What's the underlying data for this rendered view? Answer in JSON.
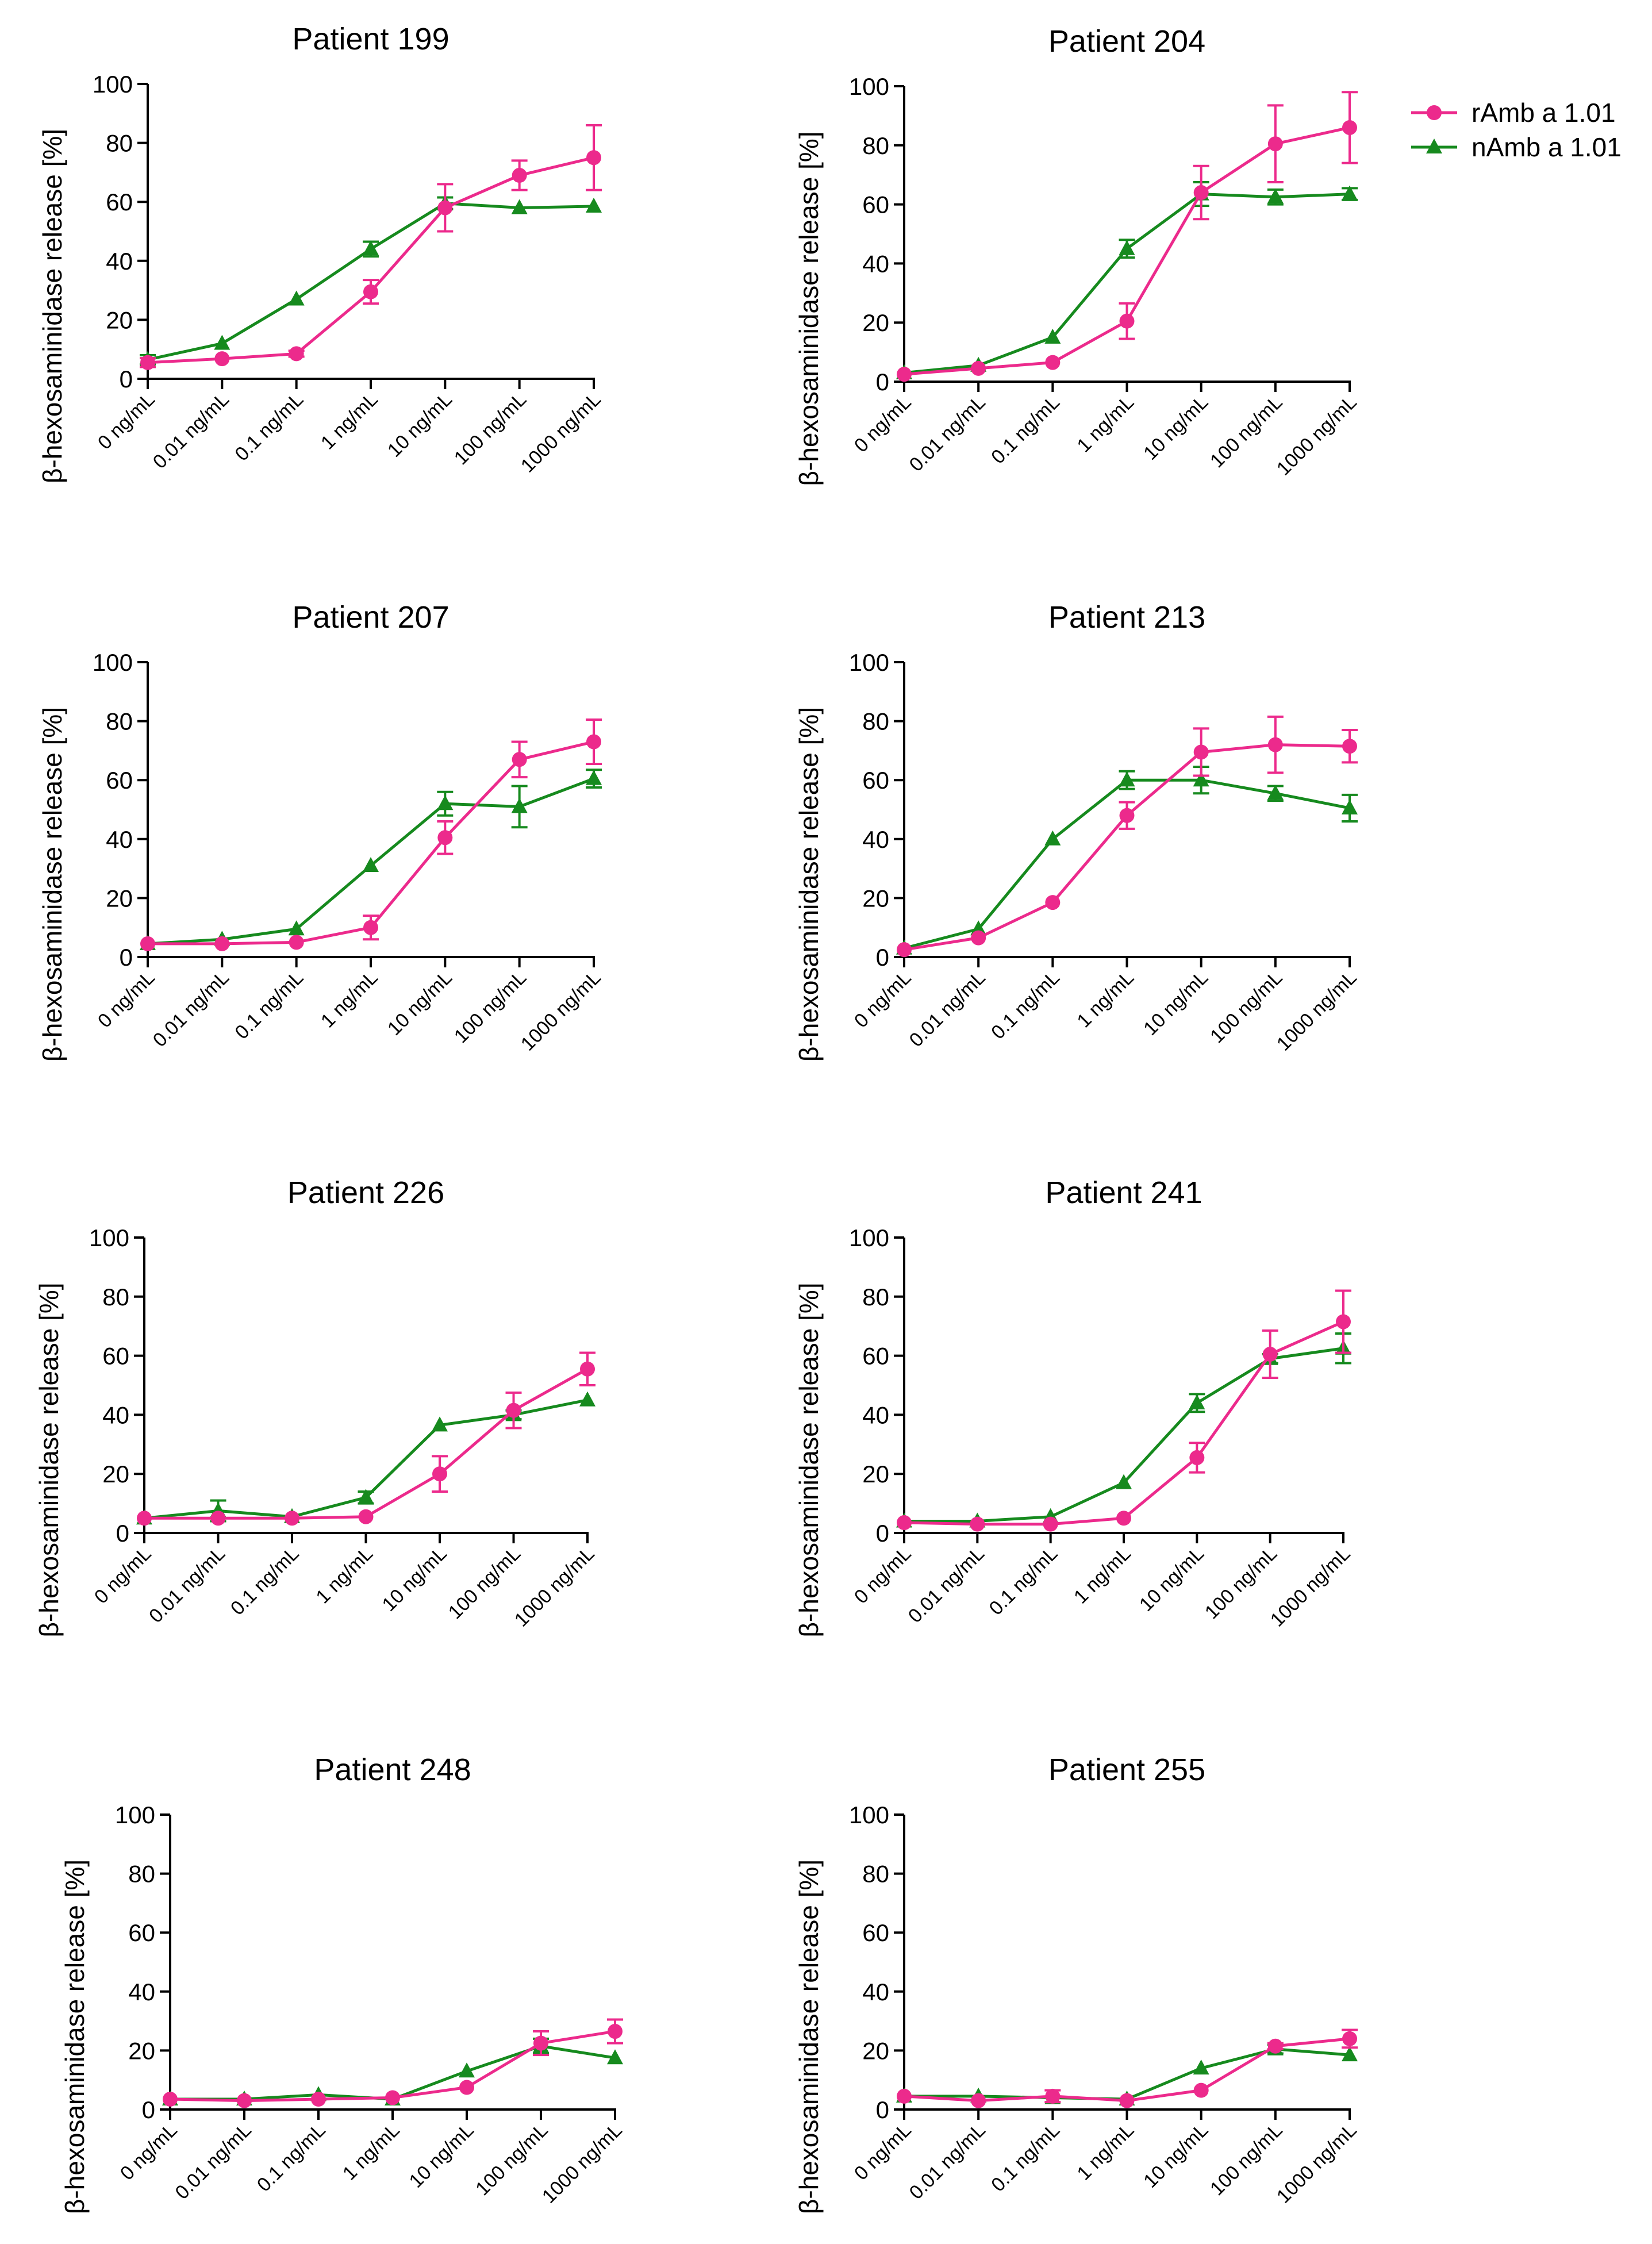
{
  "legend": {
    "placement": "top-right",
    "entries": [
      {
        "name": "rAmb a 1.01",
        "color": "#ec2a8c",
        "marker": "circle"
      },
      {
        "name": "nAmb a 1.01",
        "color": "#168a1e",
        "marker": "triangle"
      }
    ]
  },
  "chart_data": [
    {
      "type": "line",
      "title": "Patient 199",
      "ylabel": "β-hexosaminidase release [%]",
      "xlabel": "",
      "categories": [
        "0 ng/mL",
        "0.01 ng/mL",
        "0.1 ng/mL",
        "1 ng/mL",
        "10 ng/mL",
        "100 ng/mL",
        "1000 ng/mL"
      ],
      "ylim": [
        0,
        100
      ],
      "yticks": [
        "0",
        "20",
        "40",
        "60",
        "80",
        "100"
      ],
      "series": [
        {
          "name": "rAmb a 1.01",
          "color": "#ec2a8c",
          "marker": "circle",
          "values": [
            5.5,
            6.8,
            8.5,
            29.5,
            58,
            69,
            75
          ],
          "errors": [
            1.5,
            0.5,
            1,
            4,
            8,
            5,
            11
          ]
        },
        {
          "name": "nAmb a 1.01",
          "color": "#168a1e",
          "marker": "triangle",
          "values": [
            6.5,
            12,
            27,
            44,
            59.5,
            58,
            58.5
          ],
          "errors": [
            1.5,
            0.5,
            0.5,
            2.5,
            2,
            0.5,
            0.5
          ]
        }
      ]
    },
    {
      "type": "line",
      "title": "Patient 204",
      "ylabel": "β-hexosaminidase release [%]",
      "xlabel": "",
      "categories": [
        "0 ng/mL",
        "0.01 ng/mL",
        "0.1 ng/mL",
        "1 ng/mL",
        "10 ng/mL",
        "100 ng/mL",
        "1000 ng/mL"
      ],
      "ylim": [
        0,
        100
      ],
      "yticks": [
        "0",
        "20",
        "40",
        "60",
        "80",
        "100"
      ],
      "series": [
        {
          "name": "rAmb a 1.01",
          "color": "#ec2a8c",
          "marker": "circle",
          "values": [
            2.5,
            4.5,
            6.5,
            20.5,
            64,
            80.5,
            86
          ],
          "errors": [
            0.5,
            0.5,
            0.5,
            6,
            9,
            13,
            12
          ]
        },
        {
          "name": "nAmb a 1.01",
          "color": "#168a1e",
          "marker": "triangle",
          "values": [
            3,
            5.5,
            15,
            45,
            63.5,
            62.5,
            63.5
          ],
          "errors": [
            0.5,
            0.5,
            0.5,
            3,
            4,
            2.5,
            2
          ]
        }
      ]
    },
    {
      "type": "line",
      "title": "Patient 207",
      "ylabel": "β-hexosaminidase release [%]",
      "xlabel": "",
      "categories": [
        "0 ng/mL",
        "0.01 ng/mL",
        "0.1 ng/mL",
        "1 ng/mL",
        "10 ng/mL",
        "100 ng/mL",
        "1000 ng/mL"
      ],
      "ylim": [
        0,
        100
      ],
      "yticks": [
        "0",
        "20",
        "40",
        "60",
        "80",
        "100"
      ],
      "series": [
        {
          "name": "rAmb a 1.01",
          "color": "#ec2a8c",
          "marker": "circle",
          "values": [
            4.5,
            4.5,
            5,
            10,
            40.5,
            67,
            73
          ],
          "errors": [
            0.5,
            0.5,
            0.5,
            4,
            5.5,
            6,
            7.5
          ]
        },
        {
          "name": "nAmb a 1.01",
          "color": "#168a1e",
          "marker": "triangle",
          "values": [
            4.5,
            6,
            9.5,
            31,
            52,
            51,
            60.5
          ],
          "errors": [
            0.5,
            0.5,
            0.5,
            0.5,
            4,
            7,
            3
          ]
        }
      ]
    },
    {
      "type": "line",
      "title": "Patient 213",
      "ylabel": "β-hexosaminidase release [%]",
      "xlabel": "",
      "categories": [
        "0 ng/mL",
        "0.01 ng/mL",
        "0.1 ng/mL",
        "1 ng/mL",
        "10 ng/mL",
        "100 ng/mL",
        "1000 ng/mL"
      ],
      "ylim": [
        0,
        100
      ],
      "yticks": [
        "0",
        "20",
        "40",
        "60",
        "80",
        "100"
      ],
      "series": [
        {
          "name": "rAmb a 1.01",
          "color": "#ec2a8c",
          "marker": "circle",
          "values": [
            2.5,
            6.5,
            18.5,
            48,
            69.5,
            72,
            71.5
          ],
          "errors": [
            0.5,
            0.5,
            0.5,
            4.5,
            8,
            9.5,
            5.5
          ]
        },
        {
          "name": "nAmb a 1.01",
          "color": "#168a1e",
          "marker": "triangle",
          "values": [
            3,
            9.5,
            40,
            60,
            60,
            55.5,
            50.5
          ],
          "errors": [
            0.5,
            0.5,
            0.5,
            3,
            4.5,
            2.5,
            4.5
          ]
        }
      ]
    },
    {
      "type": "line",
      "title": "Patient 226",
      "ylabel": "β-hexosaminidase release [%]",
      "xlabel": "",
      "categories": [
        "0 ng/mL",
        "0.01 ng/mL",
        "0.1 ng/mL",
        "1 ng/mL",
        "10 ng/mL",
        "100 ng/mL",
        "1000 ng/mL"
      ],
      "ylim": [
        0,
        100
      ],
      "yticks": [
        "0",
        "20",
        "40",
        "60",
        "80",
        "100"
      ],
      "series": [
        {
          "name": "rAmb a 1.01",
          "color": "#ec2a8c",
          "marker": "circle",
          "values": [
            5,
            5,
            5,
            5.5,
            20,
            41.5,
            55.5
          ],
          "errors": [
            0.5,
            0.5,
            0.5,
            0.5,
            6,
            6,
            5.5
          ]
        },
        {
          "name": "nAmb a 1.01",
          "color": "#168a1e",
          "marker": "triangle",
          "values": [
            5,
            7.5,
            5.5,
            12,
            36.5,
            40,
            45
          ],
          "errors": [
            0.5,
            3.5,
            0.5,
            2,
            0.5,
            1.5,
            0.5
          ]
        }
      ]
    },
    {
      "type": "line",
      "title": "Patient 241",
      "ylabel": "β-hexosaminidase release [%]",
      "xlabel": "",
      "categories": [
        "0 ng/mL",
        "0.01 ng/mL",
        "0.1 ng/mL",
        "1 ng/mL",
        "10 ng/mL",
        "100 ng/mL",
        "1000 ng/mL"
      ],
      "ylim": [
        0,
        100
      ],
      "yticks": [
        "0",
        "20",
        "40",
        "60",
        "80",
        "100"
      ],
      "series": [
        {
          "name": "rAmb a 1.01",
          "color": "#ec2a8c",
          "marker": "circle",
          "values": [
            3.5,
            3,
            3,
            5,
            25.5,
            60.5,
            71.5
          ],
          "errors": [
            0.5,
            0.5,
            0.5,
            0.5,
            5,
            8,
            10.5
          ]
        },
        {
          "name": "nAmb a 1.01",
          "color": "#168a1e",
          "marker": "triangle",
          "values": [
            4,
            4,
            5.5,
            17,
            44,
            59,
            62.5
          ],
          "errors": [
            0.5,
            0.5,
            0.5,
            0.5,
            3,
            1.5,
            5
          ]
        }
      ]
    },
    {
      "type": "line",
      "title": "Patient 248",
      "ylabel": "β-hexosaminidase release [%]",
      "xlabel": "",
      "categories": [
        "0 ng/mL",
        "0.01 ng/mL",
        "0.1 ng/mL",
        "1 ng/mL",
        "10 ng/mL",
        "100 ng/mL",
        "1000 ng/mL"
      ],
      "ylim": [
        0,
        100
      ],
      "yticks": [
        "0",
        "20",
        "40",
        "60",
        "80",
        "100"
      ],
      "series": [
        {
          "name": "rAmb a 1.01",
          "color": "#ec2a8c",
          "marker": "circle",
          "values": [
            3.5,
            3,
            3.5,
            4,
            7.5,
            22.5,
            26.5
          ],
          "errors": [
            0.5,
            0.5,
            0.5,
            0.5,
            0.5,
            4,
            4
          ]
        },
        {
          "name": "nAmb a 1.01",
          "color": "#168a1e",
          "marker": "triangle",
          "values": [
            3.5,
            3.5,
            5,
            3.5,
            13,
            21.5,
            17.5
          ],
          "errors": [
            0.5,
            0.5,
            0.5,
            0.5,
            0.5,
            2.5,
            0.5
          ]
        }
      ]
    },
    {
      "type": "line",
      "title": "Patient 255",
      "ylabel": "β-hexosaminidase release [%]",
      "xlabel": "",
      "categories": [
        "0 ng/mL",
        "0.01 ng/mL",
        "0.1 ng/mL",
        "1 ng/mL",
        "10 ng/mL",
        "100 ng/mL",
        "1000 ng/mL"
      ],
      "ylim": [
        0,
        100
      ],
      "yticks": [
        "0",
        "20",
        "40",
        "60",
        "80",
        "100"
      ],
      "series": [
        {
          "name": "rAmb a 1.01",
          "color": "#ec2a8c",
          "marker": "circle",
          "values": [
            4.5,
            3,
            4.5,
            3,
            6.5,
            21.5,
            24
          ],
          "errors": [
            0.5,
            0.5,
            2,
            0.5,
            0.5,
            1,
            3
          ]
        },
        {
          "name": "nAmb a 1.01",
          "color": "#168a1e",
          "marker": "triangle",
          "values": [
            4.5,
            4.5,
            4,
            3.5,
            14,
            20.5,
            18.5
          ],
          "errors": [
            0.5,
            0.5,
            0.5,
            0.5,
            0.5,
            1.5,
            0.5
          ]
        }
      ]
    }
  ]
}
